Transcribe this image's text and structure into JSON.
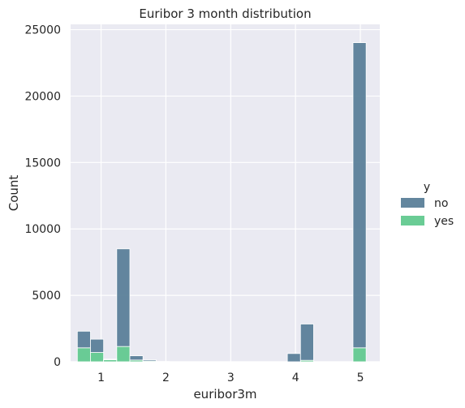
{
  "chart_data": {
    "type": "bar",
    "title": "Euribor 3 month distribution",
    "xlabel": "euribor3m",
    "ylabel": "Count",
    "xlim": [
      0.53,
      5.3
    ],
    "ylim": [
      0,
      25400
    ],
    "xticks": [
      1,
      2,
      3,
      4,
      5
    ],
    "yticks": [
      0,
      5000,
      10000,
      15000,
      20000,
      25000
    ],
    "grid": true,
    "multiple": "stack",
    "bin_edges": [
      0.634,
      0.8365,
      1.039,
      1.2415,
      1.444,
      1.6465,
      1.849,
      2.0515,
      2.254,
      2.4565,
      2.659,
      2.8615,
      3.064,
      3.2665,
      3.469,
      3.6715,
      3.874,
      4.0765,
      4.279,
      4.4815,
      4.684,
      4.8865,
      5.089
    ],
    "series": [
      {
        "name": "yes",
        "color": "#62c98f",
        "values": [
          1050,
          700,
          150,
          1150,
          130,
          60,
          10,
          0,
          0,
          0,
          0,
          0,
          0,
          0,
          0,
          0,
          0,
          110,
          0,
          0,
          0,
          1050
        ]
      },
      {
        "name": "no",
        "color": "#5b7f99",
        "values": [
          1250,
          1000,
          50,
          7350,
          320,
          90,
          10,
          0,
          0,
          0,
          0,
          0,
          0,
          0,
          0,
          0,
          620,
          2730,
          0,
          0,
          0,
          22970
        ]
      }
    ],
    "legend": {
      "title": "y",
      "entries": [
        "no",
        "yes"
      ],
      "position": "right"
    }
  }
}
